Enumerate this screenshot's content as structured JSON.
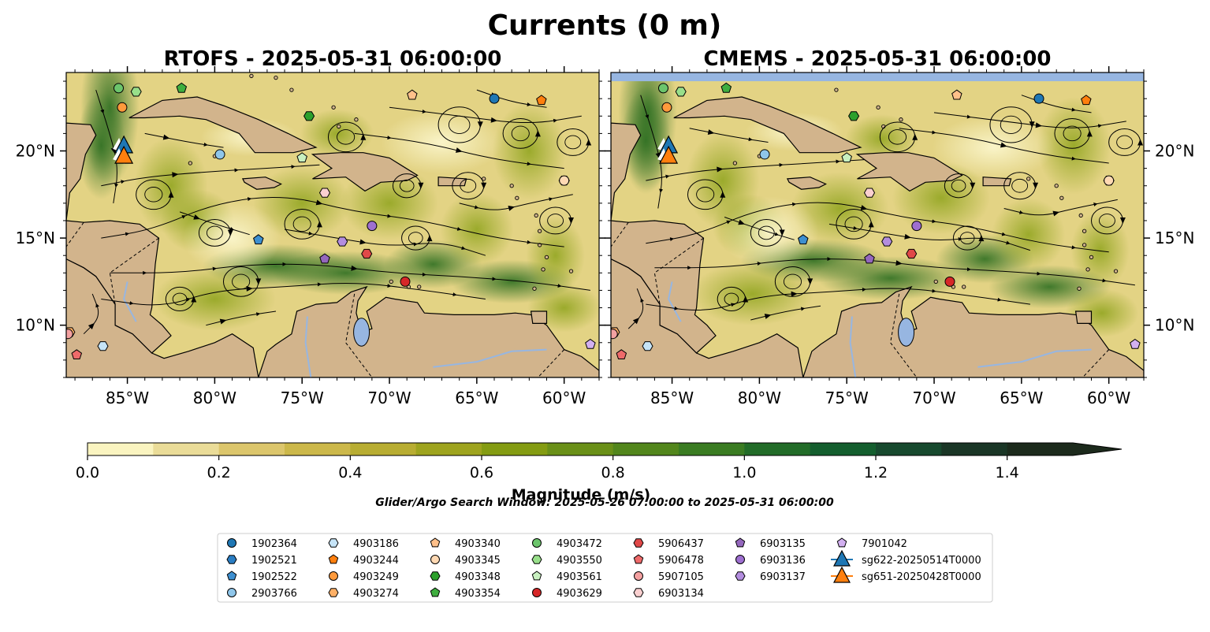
{
  "chart_data": {
    "type": "heatmap",
    "title": "Currents (0 m)",
    "panels": [
      {
        "name": "rtofs",
        "title": "RTOFS - 2025-05-31 06:00:00"
      },
      {
        "name": "cmems",
        "title": "CMEMS - 2025-05-31 06:00:00"
      }
    ],
    "xlim": [
      -88.5,
      -58.0
    ],
    "ylim": [
      7.0,
      24.5
    ],
    "x_ticks": [
      -85,
      -80,
      -75,
      -70,
      -65,
      -60
    ],
    "x_tick_labels": [
      "85°W",
      "80°W",
      "75°W",
      "70°W",
      "65°W",
      "60°W"
    ],
    "y_ticks": [
      20,
      15,
      10
    ],
    "y_tick_labels": [
      "20°N",
      "15°N",
      "10°N"
    ],
    "colorbar": {
      "label": "Magnitude (m/s)",
      "ticks": [
        0.0,
        0.2,
        0.4,
        0.6,
        0.8,
        1.0,
        1.2,
        1.4
      ],
      "tick_labels": [
        "0.0",
        "0.2",
        "0.4",
        "0.6",
        "0.8",
        "1.0",
        "1.2",
        "1.4"
      ],
      "min": 0.0,
      "max": 1.5,
      "step": 0.1,
      "extend": "max",
      "colors": [
        "#faf4c0",
        "#eadc98",
        "#dcc66c",
        "#ccb84a",
        "#b8ad32",
        "#9ea41e",
        "#849c12",
        "#6a9018",
        "#52861c",
        "#3a7c22",
        "#226c28",
        "#145e2e",
        "#17492e",
        "#1a3626",
        "#1c2a1c"
      ]
    },
    "search_window": "Glider/Argo Search Window: 2025-05-26 07:00:00 to 2025-05-31 06:00:00",
    "land_color": "#d2b48c",
    "water_feature_color": "#97b6e1",
    "floats": [
      {
        "id": "1902364",
        "marker": "circle",
        "color": "#1f77b4",
        "lon": -64.0,
        "lat": 23.0
      },
      {
        "id": "1902521",
        "marker": "hexagon",
        "color": "#2a7dc3",
        "lon": -60.0,
        "lat": 18.3
      },
      {
        "id": "1902522",
        "marker": "pentagon",
        "color": "#3d8fd0",
        "lon": -77.5,
        "lat": 14.9
      },
      {
        "id": "2903766",
        "marker": "circle",
        "color": "#8fc6ea",
        "lon": -79.7,
        "lat": 19.8
      },
      {
        "id": "4903186",
        "marker": "hexagon",
        "color": "#c6e4f7",
        "lon": -86.4,
        "lat": 8.8
      },
      {
        "id": "4903244",
        "marker": "pentagon",
        "color": "#ff7f0e",
        "lon": -61.3,
        "lat": 22.9
      },
      {
        "id": "4903249",
        "marker": "circle",
        "color": "#ff9a3c",
        "lon": -85.3,
        "lat": 22.5
      },
      {
        "id": "4903274",
        "marker": "hexagon",
        "color": "#ffb066",
        "lon": -88.3,
        "lat": 9.6
      },
      {
        "id": "4903340",
        "marker": "pentagon",
        "color": "#ffc08a",
        "lon": -68.7,
        "lat": 23.2
      },
      {
        "id": "4903345",
        "marker": "circle",
        "color": "#ffd9b3",
        "lon": -60.0,
        "lat": 18.3
      },
      {
        "id": "4903348",
        "marker": "hexagon",
        "color": "#2ca02c",
        "lon": -74.6,
        "lat": 22.0
      },
      {
        "id": "4903354",
        "marker": "pentagon",
        "color": "#3fae3f",
        "lon": -81.9,
        "lat": 23.6
      },
      {
        "id": "4903472",
        "marker": "circle",
        "color": "#6cc56c",
        "lon": -85.5,
        "lat": 23.6
      },
      {
        "id": "4903550",
        "marker": "hexagon",
        "color": "#98df8a",
        "lon": -84.5,
        "lat": 23.4
      },
      {
        "id": "4903561",
        "marker": "pentagon",
        "color": "#c8f0c0",
        "lon": -75.0,
        "lat": 19.6
      },
      {
        "id": "4903629",
        "marker": "circle",
        "color": "#d62728",
        "lon": -69.1,
        "lat": 12.5
      },
      {
        "id": "5906437",
        "marker": "hexagon",
        "color": "#e04848",
        "lon": -71.3,
        "lat": 14.1
      },
      {
        "id": "5906478",
        "marker": "pentagon",
        "color": "#ee6a6a",
        "lon": -87.9,
        "lat": 8.3
      },
      {
        "id": "5907105",
        "marker": "circle",
        "color": "#f4a1a1",
        "lon": -88.4,
        "lat": 9.5
      },
      {
        "id": "6903134",
        "marker": "hexagon",
        "color": "#fad0d0",
        "lon": -73.7,
        "lat": 17.6
      },
      {
        "id": "6903135",
        "marker": "pentagon",
        "color": "#9467bd",
        "lon": -73.7,
        "lat": 13.8
      },
      {
        "id": "6903136",
        "marker": "circle",
        "color": "#9e6fd0",
        "lon": -71.0,
        "lat": 15.7
      },
      {
        "id": "6903137",
        "marker": "hexagon",
        "color": "#b38ddf",
        "lon": -72.7,
        "lat": 14.8
      },
      {
        "id": "7901042",
        "marker": "pentagon",
        "color": "#d2b0f0",
        "lon": -58.5,
        "lat": 8.9
      }
    ],
    "gliders": [
      {
        "id": "sg622-20250514T0000",
        "color": "#1f77b4",
        "lon": -85.2,
        "lat": 20.3
      },
      {
        "id": "sg651-20250428T0000",
        "color": "#ff7f0e",
        "lon": -85.2,
        "lat": 19.7
      }
    ]
  }
}
